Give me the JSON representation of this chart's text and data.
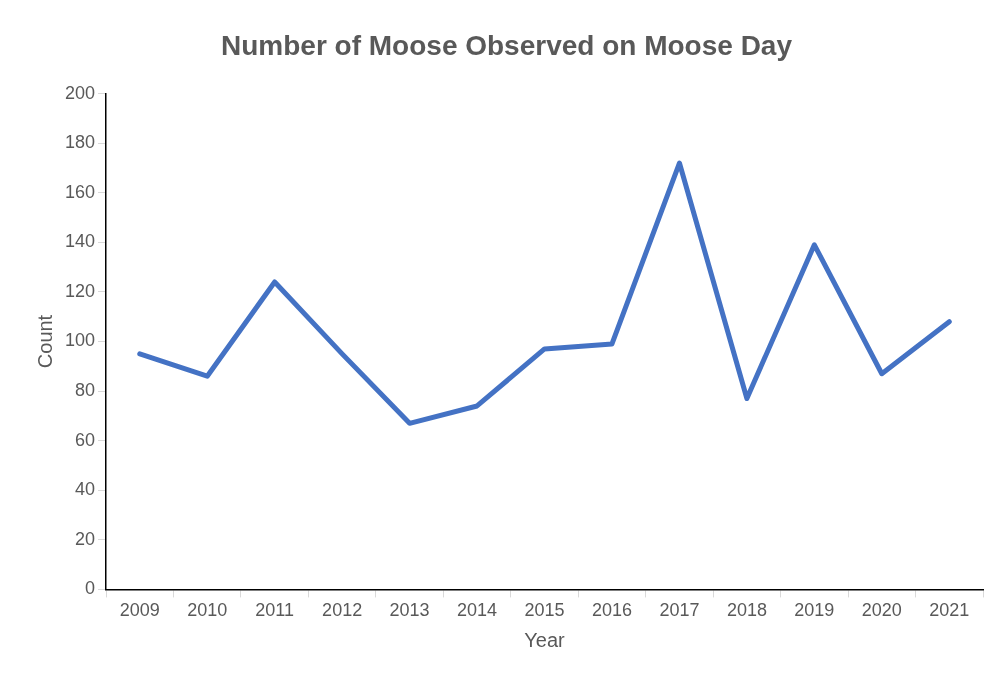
{
  "chart_data": {
    "type": "line",
    "title": "Number of Moose Observed on Moose Day",
    "xlabel": "Year",
    "ylabel": "Count",
    "categories": [
      "2009",
      "2010",
      "2011",
      "2012",
      "2013",
      "2014",
      "2015",
      "2016",
      "2017",
      "2018",
      "2019",
      "2020",
      "2021"
    ],
    "series": [
      {
        "color": "#4472c4",
        "values": [
          95,
          86,
          124,
          95,
          67,
          74,
          97,
          99,
          172,
          77,
          139,
          87,
          108
        ]
      }
    ],
    "ylim": [
      0,
      200
    ],
    "yticks": [
      0,
      20,
      40,
      60,
      80,
      100,
      120,
      140,
      160,
      180,
      200
    ],
    "grid": false,
    "legend": false,
    "marker": "none",
    "line_style": "solid"
  }
}
